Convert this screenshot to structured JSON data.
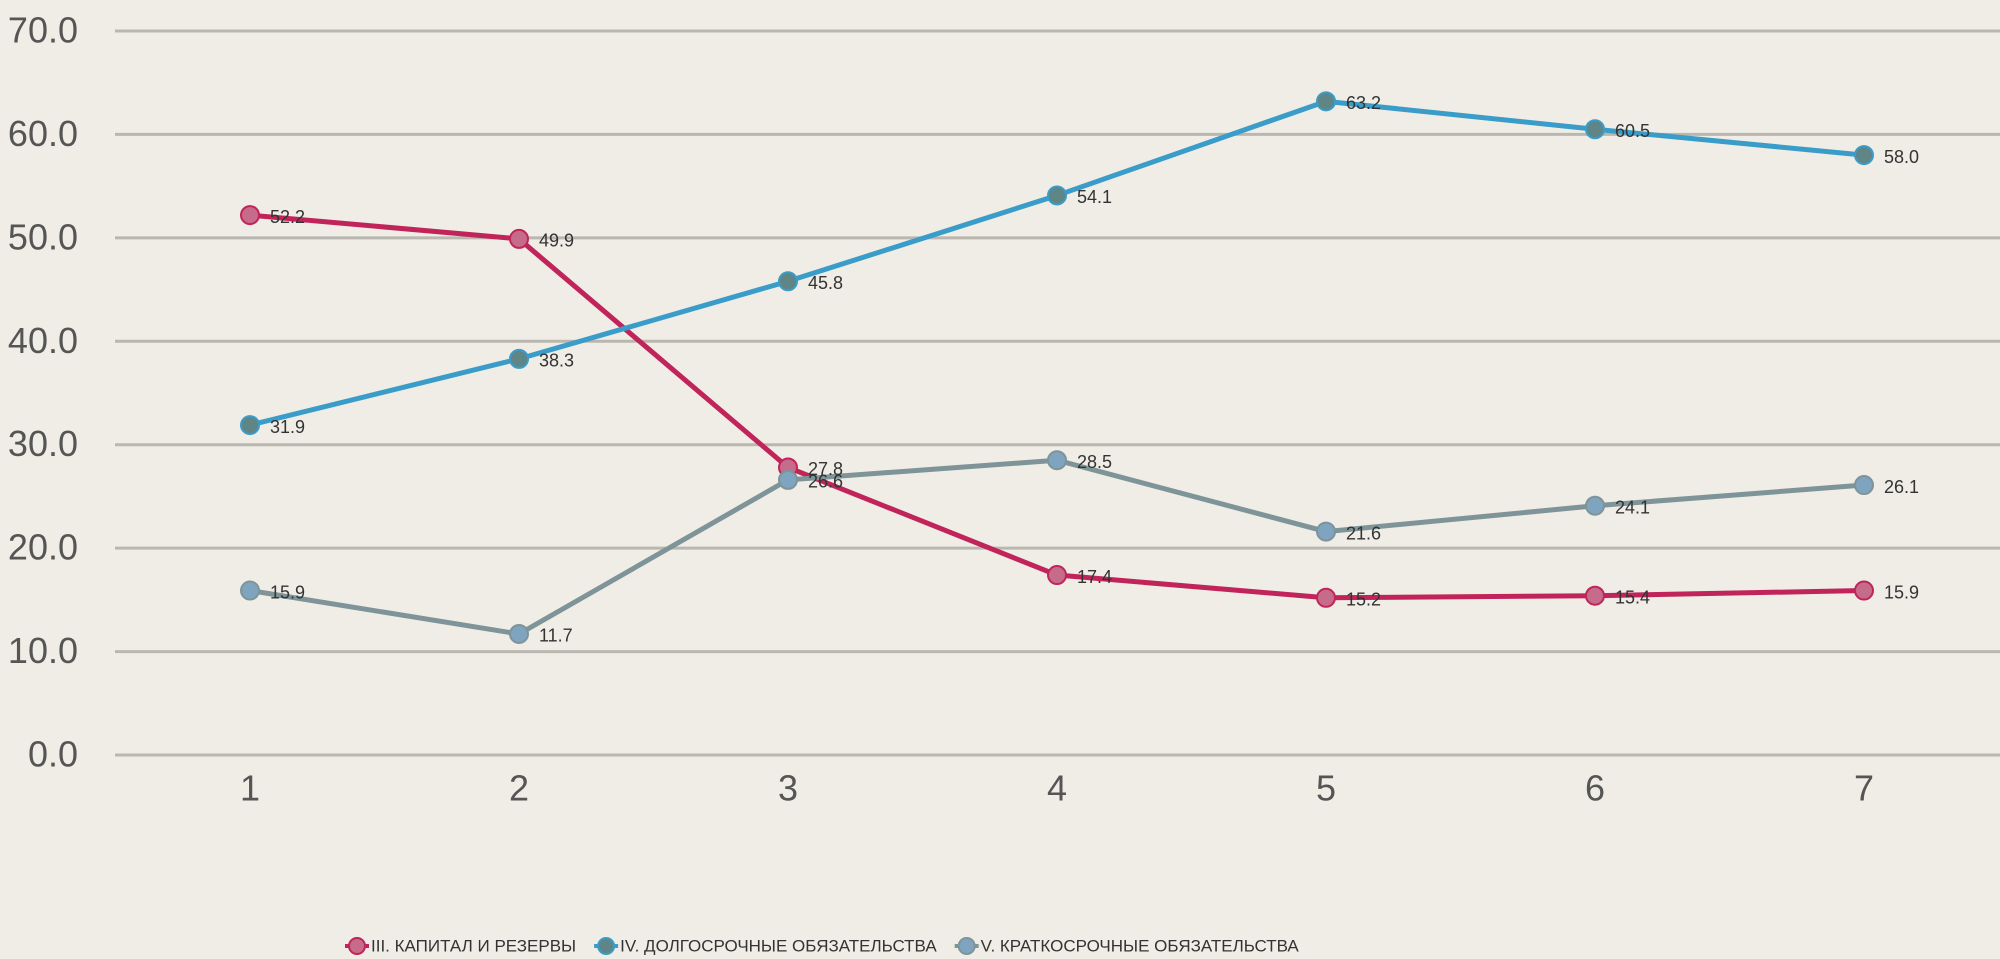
{
  "chart_data": {
    "type": "line",
    "categories": [
      "1",
      "2",
      "3",
      "4",
      "5",
      "6",
      "7"
    ],
    "series": [
      {
        "name": "III. КАПИТАЛ И РЕЗЕРВЫ",
        "color": "#c0245a",
        "marker_color": "#c76b8a",
        "values": [
          52.2,
          49.9,
          27.8,
          17.4,
          15.2,
          15.4,
          15.9
        ],
        "value_labels": [
          "52.2",
          "49.9",
          "27.8",
          "17.4",
          "15.2",
          "15.4",
          "15.9"
        ]
      },
      {
        "name": "IV. ДОЛГОСРОЧНЫЕ ОБЯЗАТЕЛЬСТВА",
        "color": "#3a9cc8",
        "marker_color": "#5f8586",
        "values": [
          31.9,
          38.3,
          45.8,
          54.1,
          63.2,
          60.5,
          58.0
        ],
        "value_labels": [
          "31.9",
          "38.3",
          "45.8",
          "54.1",
          "63.2",
          "60.5",
          "58.0"
        ]
      },
      {
        "name": "V. КРАТКОСРОЧНЫЕ ОБЯЗАТЕЛЬСТВА",
        "color": "#7f9498",
        "marker_color": "#7ea4bf",
        "values": [
          15.9,
          11.7,
          26.6,
          28.5,
          21.6,
          24.1,
          26.1
        ],
        "value_labels": [
          "15.9",
          "11.7",
          "26.6",
          "28.5",
          "21.6",
          "24.1",
          "26.1"
        ]
      }
    ],
    "ylim": [
      0,
      70
    ],
    "yticks": [
      {
        "value": 0,
        "label": "0.0"
      },
      {
        "value": 10,
        "label": "10.0"
      },
      {
        "value": 20,
        "label": "20.0"
      },
      {
        "value": 30,
        "label": "30.0"
      },
      {
        "value": 40,
        "label": "40.0"
      },
      {
        "value": 50,
        "label": "50.0"
      },
      {
        "value": 60,
        "label": "60.0"
      },
      {
        "value": 70,
        "label": "70.0"
      }
    ],
    "grid": true,
    "legend": "bottom"
  }
}
